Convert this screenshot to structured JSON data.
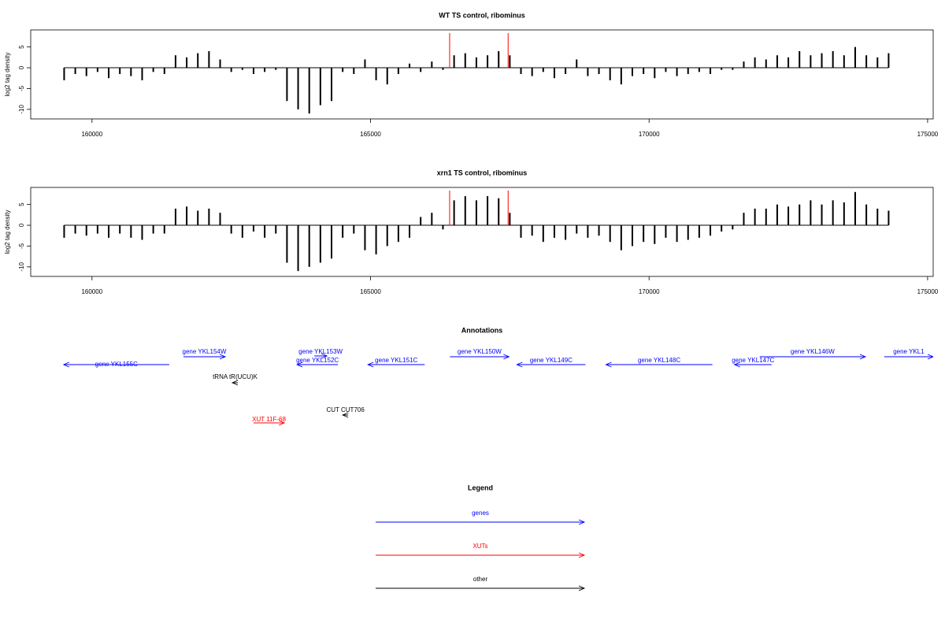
{
  "chart_data": [
    {
      "type": "bar",
      "title": "WT TS control, ribominus",
      "y_label": "log2 tag density",
      "color": "#000000",
      "x": [
        159500,
        159700,
        159900,
        160100,
        160300,
        160500,
        160700,
        160900,
        161100,
        161300,
        161500,
        161700,
        161900,
        162100,
        162300,
        162500,
        162700,
        162900,
        163100,
        163300,
        163500,
        163700,
        163900,
        164100,
        164300,
        164500,
        164700,
        164900,
        165100,
        165300,
        165500,
        165700,
        165900,
        166100,
        166300,
        166500,
        166700,
        166900,
        167100,
        167300,
        167500,
        167700,
        167900,
        168100,
        168300,
        168500,
        168700,
        168900,
        169100,
        169300,
        169500,
        169700,
        169900,
        170100,
        170300,
        170500,
        170700,
        170900,
        171100,
        171300,
        171500,
        171700,
        171900,
        172100,
        172300,
        172500,
        172700,
        172900,
        173100,
        173300,
        173500,
        173700,
        173900,
        174100,
        174300
      ],
      "values": [
        -3,
        -1.5,
        -2,
        -1,
        -2.5,
        -1.5,
        -2,
        -3,
        -1,
        -1.5,
        3,
        2.5,
        3.5,
        4,
        2,
        -1,
        -0.5,
        -1.5,
        -1,
        -0.5,
        -8,
        -10,
        -11,
        -9,
        -8,
        -1,
        -1.5,
        2,
        -3,
        -4,
        -1.5,
        1,
        -1,
        1.5,
        -0.5,
        3,
        3.5,
        2.5,
        3,
        4,
        3,
        -1.5,
        -2,
        -1,
        -2.5,
        -1.5,
        2,
        -2,
        -1.5,
        -3,
        -4,
        -2,
        -1.5,
        -2.5,
        -1,
        -2,
        -1.5,
        -1,
        -1.5,
        -0.5,
        -0.5,
        1.5,
        2.5,
        2,
        3,
        2.5,
        4,
        3,
        3.5,
        4,
        3,
        5,
        3,
        2.5,
        3.5
      ],
      "xlim": [
        158900,
        175100
      ],
      "xticks": [
        160000,
        165000,
        170000,
        175000
      ],
      "ylim": [
        -12.3,
        9.1
      ],
      "yticks": [
        -10,
        -5,
        0,
        5
      ],
      "highlight": {
        "x": [
          166420,
          167470
        ],
        "color": "#ff0000"
      }
    },
    {
      "type": "bar",
      "title": "xrn1 TS control, ribominus",
      "y_label": "log2 tag density",
      "color": "#000000",
      "x": [
        159500,
        159700,
        159900,
        160100,
        160300,
        160500,
        160700,
        160900,
        161100,
        161300,
        161500,
        161700,
        161900,
        162100,
        162300,
        162500,
        162700,
        162900,
        163100,
        163300,
        163500,
        163700,
        163900,
        164100,
        164300,
        164500,
        164700,
        164900,
        165100,
        165300,
        165500,
        165700,
        165900,
        166100,
        166300,
        166500,
        166700,
        166900,
        167100,
        167300,
        167500,
        167700,
        167900,
        168100,
        168300,
        168500,
        168700,
        168900,
        169100,
        169300,
        169500,
        169700,
        169900,
        170100,
        170300,
        170500,
        170700,
        170900,
        171100,
        171300,
        171500,
        171700,
        171900,
        172100,
        172300,
        172500,
        172700,
        172900,
        173100,
        173300,
        173500,
        173700,
        173900,
        174100,
        174300
      ],
      "values": [
        -3,
        -2,
        -2.5,
        -2,
        -3,
        -2,
        -3,
        -3.5,
        -2,
        -2,
        4,
        4.5,
        3.5,
        4,
        3,
        -2,
        -3,
        -1.5,
        -3,
        -2,
        -9,
        -11,
        -10,
        -9,
        -8,
        -3,
        -2,
        -6,
        -7,
        -5,
        -4,
        -3,
        2,
        3,
        -1,
        6,
        7,
        6,
        7,
        6.5,
        3,
        -3,
        -2.5,
        -4,
        -3,
        -3.5,
        -2,
        -3,
        -2.5,
        -4,
        -6,
        -5,
        -4,
        -4.5,
        -3,
        -4,
        -3.5,
        -3,
        -2.5,
        -1.5,
        -1,
        3,
        4,
        4,
        5,
        4.5,
        5,
        6,
        5,
        6,
        5.5,
        8,
        5,
        4,
        3.5
      ],
      "xlim": [
        158900,
        175100
      ],
      "xticks": [
        160000,
        165000,
        170000,
        175000
      ],
      "ylim": [
        -12.3,
        9.1
      ],
      "yticks": [
        -10,
        -5,
        0,
        5
      ],
      "highlight": {
        "x": [
          166420,
          167470
        ],
        "color": "#ff0000"
      }
    }
  ],
  "annotations": {
    "title": "Annotations",
    "items": [
      {
        "label": "gene YKL155C",
        "start": 159491,
        "end": 161387,
        "strand": "-",
        "color": "#0000ff"
      },
      {
        "label": "gene YKL154W",
        "start": 161641,
        "end": 162392,
        "strand": "+",
        "color": "#0000ff"
      },
      {
        "label": "gene YKL153W",
        "start": 163991,
        "end": 164217,
        "strand": "+",
        "color": "#0000ff"
      },
      {
        "label": "gene YKL152C",
        "start": 163680,
        "end": 164415,
        "strand": "-",
        "color": "#0000ff"
      },
      {
        "label": "gene YKL151C",
        "start": 164953,
        "end": 165972,
        "strand": "-",
        "color": "#0000ff"
      },
      {
        "label": "gene YKL150W",
        "start": 166425,
        "end": 167486,
        "strand": "+",
        "color": "#0000ff"
      },
      {
        "label": "gene YKL149C",
        "start": 167627,
        "end": 168858,
        "strand": "-",
        "color": "#0000ff"
      },
      {
        "label": "gene YKL148C",
        "start": 169226,
        "end": 171137,
        "strand": "-",
        "color": "#0000ff"
      },
      {
        "label": "gene YKL147C",
        "start": 171534,
        "end": 172199,
        "strand": "-",
        "color": "#0000ff"
      },
      {
        "label": "gene YKL146W",
        "start": 171987,
        "end": 173883,
        "strand": "+",
        "color": "#0000ff"
      },
      {
        "label": "gene YKL1",
        "start": 174222,
        "end": 175100,
        "strand": "+",
        "color": "#0000ff"
      },
      {
        "label": "tRNA tR(UCU)K",
        "start": 162519,
        "end": 162618,
        "strand": "-",
        "color": "#000000"
      },
      {
        "label": "CUT CUT706",
        "start": 164500,
        "end": 164599,
        "strand": "-",
        "color": "#000000"
      },
      {
        "label": "XUT 11F-68",
        "start": 162901,
        "end": 163453,
        "strand": "+",
        "color": "#ff0000"
      }
    ]
  },
  "legend": {
    "title": "Legend",
    "items": [
      {
        "label": "genes",
        "color": "#0000ff"
      },
      {
        "label": "XUTs",
        "color": "#ff0000"
      },
      {
        "label": "other",
        "color": "#000000"
      }
    ]
  }
}
